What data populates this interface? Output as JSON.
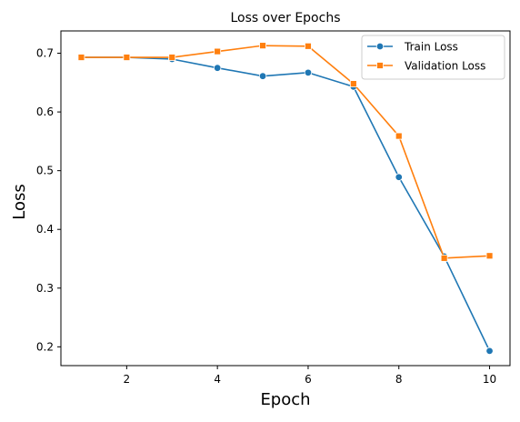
{
  "chart_data": {
    "type": "line",
    "title": "Loss over Epochs",
    "xlabel": "Epoch",
    "ylabel": "Loss",
    "x": [
      1,
      2,
      3,
      4,
      5,
      6,
      7,
      8,
      9,
      10
    ],
    "xlim": [
      0.55,
      10.45
    ],
    "ylim": [
      0.168,
      0.738
    ],
    "xticks": [
      2,
      4,
      6,
      8,
      10
    ],
    "yticks": [
      0.2,
      0.3,
      0.4,
      0.5,
      0.6,
      0.7
    ],
    "grid": false,
    "legend_position": "top-right",
    "series": [
      {
        "name": "Train Loss",
        "color": "#1f77b4",
        "marker": "circle",
        "values": [
          0.693,
          0.693,
          0.69,
          0.675,
          0.661,
          0.667,
          0.643,
          0.489,
          0.354,
          0.193
        ]
      },
      {
        "name": "Validation Loss",
        "color": "#ff7f0e",
        "marker": "square",
        "values": [
          0.693,
          0.693,
          0.693,
          0.703,
          0.713,
          0.712,
          0.648,
          0.559,
          0.351,
          0.355
        ]
      }
    ]
  }
}
